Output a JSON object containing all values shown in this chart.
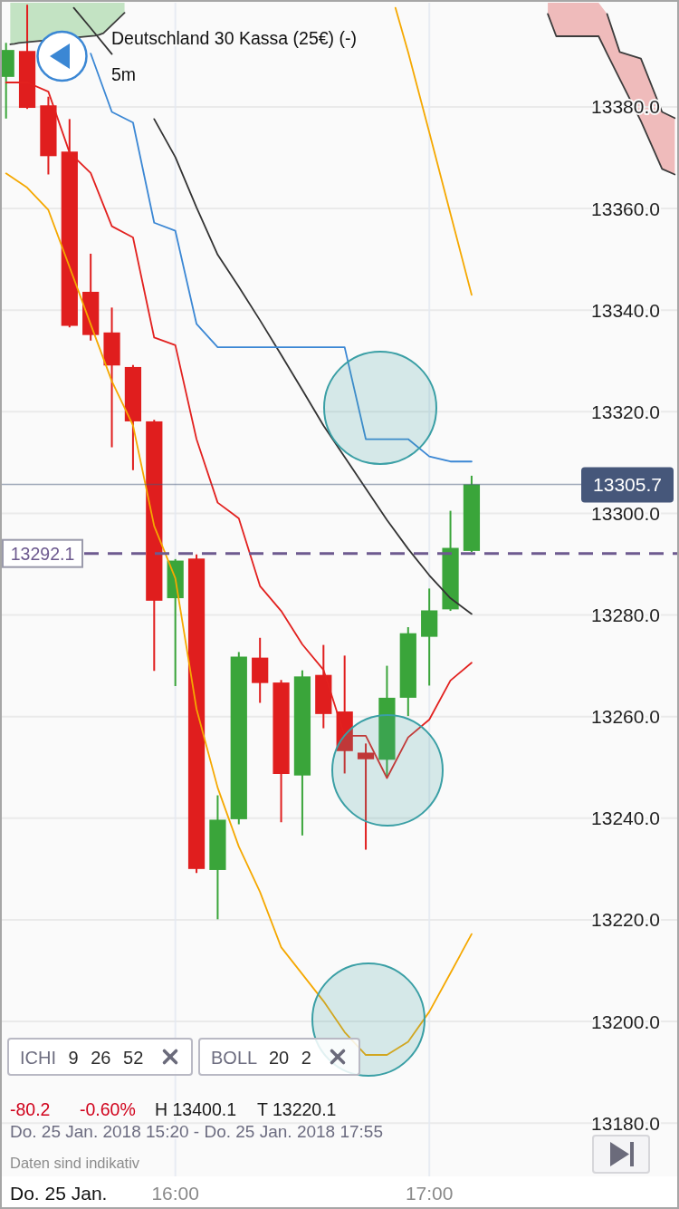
{
  "chart_data": {
    "type": "candlestick",
    "title": "Deutschland 30 Kassa (25€) (-)",
    "subtitle": "5m",
    "xlabel": "Do. 25 Jan.",
    "x": [
      "2018-01-25T15:20",
      "2018-01-25T15:25",
      "2018-01-25T15:30",
      "2018-01-25T15:35",
      "2018-01-25T15:40",
      "2018-01-25T15:45",
      "2018-01-25T15:50",
      "2018-01-25T15:55",
      "2018-01-25T16:00",
      "2018-01-25T16:05",
      "2018-01-25T16:10",
      "2018-01-25T16:15",
      "2018-01-25T16:20",
      "2018-01-25T16:25",
      "2018-01-25T16:30",
      "2018-01-25T16:35",
      "2018-01-25T16:40",
      "2018-01-25T16:45",
      "2018-01-25T16:50",
      "2018-01-25T16:55",
      "2018-01-25T17:00",
      "2018-01-25T17:05",
      "2018-01-25T17:10"
    ],
    "ohlc": [
      [
        13385.9,
        13392.6,
        13377.7,
        13391.2
      ],
      [
        13391.0,
        13400.1,
        13379.6,
        13379.8
      ],
      [
        13380.3,
        13382.0,
        13366.7,
        13370.3
      ],
      [
        13371.2,
        13377.6,
        13336.6,
        13336.9
      ],
      [
        13343.6,
        13351.1,
        13334.0,
        13335.1
      ],
      [
        13335.6,
        13340.5,
        13313.0,
        13329.1
      ],
      [
        13328.8,
        13329.2,
        13308.5,
        13318.1
      ],
      [
        13318.1,
        13318.4,
        13269.0,
        13282.8
      ],
      [
        13283.3,
        13291.0,
        13266.0,
        13290.7
      ],
      [
        13291.1,
        13291.9,
        13229.2,
        13230.0
      ],
      [
        13229.8,
        13244.5,
        13220.1,
        13239.7
      ],
      [
        13239.8,
        13272.7,
        13238.8,
        13271.8
      ],
      [
        13271.6,
        13275.5,
        13262.7,
        13266.6
      ],
      [
        13266.7,
        13267.2,
        13239.2,
        13248.7
      ],
      [
        13248.4,
        13269.1,
        13236.6,
        13267.9
      ],
      [
        13268.2,
        13274.1,
        13257.7,
        13260.5
      ],
      [
        13261.0,
        13272.0,
        13248.8,
        13253.2
      ],
      [
        13252.9,
        13254.7,
        13233.8,
        13251.6
      ],
      [
        13251.5,
        13270.0,
        13248.2,
        13263.7
      ],
      [
        13263.7,
        13277.6,
        13260.1,
        13276.4
      ],
      [
        13275.7,
        13285.2,
        13266.1,
        13280.9
      ],
      [
        13281.1,
        13300.5,
        13280.8,
        13293.2
      ],
      [
        13292.6,
        13307.4,
        13292.4,
        13305.7
      ]
    ],
    "colors": [
      "#3aa53a",
      "#e01e1e",
      "#e01e1e",
      "#e01e1e",
      "#e01e1e",
      "#e01e1e",
      "#e01e1e",
      "#e01e1e",
      "#3aa53a",
      "#e01e1e",
      "#3aa53a",
      "#3aa53a",
      "#e01e1e",
      "#e01e1e",
      "#3aa53a",
      "#e01e1e",
      "#e01e1e",
      "#e01e1e",
      "#3aa53a",
      "#3aa53a",
      "#3aa53a",
      "#3aa53a",
      "#3aa53a"
    ],
    "series": [
      {
        "type": "line",
        "x": [
          "2018-01-25T15:36",
          "2018-01-25T15:40",
          "2018-01-25T15:45",
          "2018-01-25T15:50",
          "2018-01-25T15:55",
          "2018-01-25T16:00",
          "2018-01-25T16:05",
          "2018-01-25T16:10",
          "2018-01-25T16:15",
          "2018-01-25T16:20",
          "2018-01-25T16:25",
          "2018-01-25T16:30",
          "2018-01-25T16:35",
          "2018-01-25T16:40",
          "2018-01-25T16:45",
          "2018-01-25T16:50",
          "2018-01-25T16:55",
          "2018-01-25T17:00",
          "2018-01-25T17:05",
          "2018-01-25T17:10"
        ],
        "color": "#333333",
        "values": [
          13399.5,
          13395.5,
          13390.4,
          null,
          13377.6,
          13370.1,
          13360.2,
          13350.9,
          13344.6,
          13338.0,
          13331.2,
          13324.3,
          13317.3,
          13311.1,
          13304.9,
          13298.7,
          13293.0,
          13287.8,
          13283.3,
          13280.2
        ]
      },
      {
        "type": "line",
        "color": "#f5a800",
        "values": [
          13366.9,
          13364.1,
          13359.7,
          13348.5,
          13337.2,
          13326.0,
          13317.3,
          13297.5,
          13287.2,
          13261.5,
          13246.0,
          13234.4,
          13225.5,
          13214.6,
          13209.3,
          13204.0,
          13197.9,
          13193.4,
          13193.4,
          13196.0,
          13201.9,
          13209.5,
          13217.2
        ]
      },
      {
        "type": "line",
        "x": [
          "2018-01-25T16:52",
          "2018-01-25T16:55",
          "2018-01-25T17:00",
          "2018-01-25T17:05",
          "2018-01-25T17:10"
        ],
        "color": "#f5a800",
        "values": [
          13399.5,
          13390.8,
          13375.0,
          13359.0,
          13343.0
        ]
      },
      {
        "type": "line",
        "x": [
          "2018-01-25T15:21",
          "2018-01-25T15:22",
          "2018-01-25T15:23",
          "2018-01-25T15:41",
          "2018-01-25T15:42",
          "2018-01-25T15:43",
          "2018-01-25T15:48"
        ],
        "color": "#3c3c3c",
        "values": [
          13392.3,
          13392.4,
          13392.6,
          13394.0,
          13394.2,
          13394.5,
          13398.5
        ],
        "lower": [
          13392.3,
          13392.4,
          13392.6,
          13394.0,
          13394.2,
          13394.5,
          13398.5
        ],
        "upper": [
          13400.5,
          13400.5,
          13400.5,
          13400.5,
          13400.5,
          13400.5,
          13400.5
        ],
        "colors": [
          "#c3e3c3",
          "#c3e3c3",
          "#c3e3c3",
          "#c3e3c3",
          "#c3e3c3",
          "#c3e3c3",
          "#c3e3c3"
        ]
      },
      {
        "type": "line",
        "x": [
          "2018-01-25T17:28",
          "2018-01-25T17:30",
          "2018-01-25T17:35",
          "2018-01-25T17:40",
          "2018-01-25T17:42",
          "2018-01-25T17:45",
          "2018-01-25T17:50",
          "2018-01-25T17:55",
          "2018-01-25T17:58"
        ],
        "color": "#3c3c3c",
        "values": [
          13398.3,
          13393.9,
          13393.9,
          13393.9,
          13390.5,
          13385.5,
          13377.2,
          13367.8,
          13366.7
        ],
        "lower": [
          13398.3,
          13393.9,
          13393.9,
          13393.9,
          13390.5,
          13385.5,
          13377.2,
          13367.8,
          13366.7
        ],
        "upper": [
          13400.5,
          13400.5,
          13400.5,
          13400.5,
          13398.3,
          13390.8,
          13389.5,
          13379.0,
          13377.8
        ],
        "colors": [
          "#efbbbb",
          "#efbbbb",
          "#efbbbb",
          "#efbbbb",
          "#efbbbb",
          "#efbbbb",
          "#efbbbb",
          "#efbbbb",
          "#efbbbb"
        ]
      },
      {
        "type": "line",
        "x": [
          "2018-01-25T17:42",
          "2018-01-25T17:45",
          "2018-01-25T17:50",
          "2018-01-25T17:55",
          "2018-01-25T17:58"
        ],
        "color": "#3c3c3c",
        "values": [
          13398.3,
          13390.8,
          13389.5,
          13379.0,
          13377.8
        ]
      },
      {
        "type": "line",
        "color": "#3b87d4",
        "values": [
          null,
          null,
          null,
          null,
          13390.5,
          13379.0,
          13376.9,
          13357.2,
          13355.6,
          13337.3,
          13332.7,
          13332.7,
          13332.7,
          13332.7,
          13332.7,
          13332.7,
          13332.7,
          13314.6,
          13314.6,
          13314.6,
          13311.2,
          13310.2,
          13310.2
        ]
      },
      {
        "type": "line",
        "color": "#e2211f",
        "values": [
          13384.8,
          13384.8,
          13383.0,
          13371.0,
          13367.0,
          13356.5,
          13354.3,
          13334.6,
          13333.1,
          13314.6,
          13302.1,
          13299.0,
          13285.7,
          13280.8,
          13274.2,
          13269.2,
          13256.2,
          13256.2,
          13247.9,
          13255.9,
          13259.4,
          13267.1,
          13270.6
        ]
      }
    ],
    "xlim": [
      "2018-01-25T15:19",
      "2018-01-25T17:59"
    ],
    "xticks": [
      {
        "value": "2018-01-25T16:00",
        "label": "16:00"
      },
      {
        "value": "2018-01-25T17:00",
        "label": "17:00"
      }
    ],
    "ylim": [
      13169.5,
      13400.5
    ],
    "yticks": [
      {
        "value": 13180,
        "label": "13180.0"
      },
      {
        "value": 13200,
        "label": "13200.0"
      },
      {
        "value": 13220,
        "label": "13220.0"
      },
      {
        "value": 13240,
        "label": "13240.0"
      },
      {
        "value": 13260,
        "label": "13260.0"
      },
      {
        "value": 13280,
        "label": "13280.0"
      },
      {
        "value": 13300,
        "label": "13300.0"
      },
      {
        "value": 13320,
        "label": "13320.0"
      },
      {
        "value": 13340,
        "label": "13340.0"
      },
      {
        "value": 13360,
        "label": "13360.0"
      },
      {
        "value": 13380,
        "label": "13380.0"
      }
    ],
    "grid": true,
    "ref_lines": [
      {
        "axis": "y",
        "value": 13305.7,
        "label": "13305.7",
        "color": "#46577a"
      },
      {
        "axis": "y",
        "value": 13292.1,
        "label": "13292.1",
        "color": "#6d5a8f",
        "line_style": "dashed"
      }
    ],
    "annotations": [
      "ICHI 9 26 52",
      "BOLL 20 2",
      "-80.2",
      "-0.60%",
      "H 13400.1",
      "T 13220.1",
      "Do. 25 Jan. 2018 15:20 - Do. 25 Jan. 2018 17:55",
      "Daten sind indikativ"
    ]
  }
}
